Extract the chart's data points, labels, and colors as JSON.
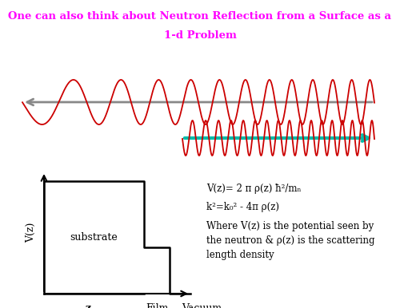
{
  "title_line1": "One can also think about Neutron Reflection from a Surface as a",
  "title_line2": "1-d Problem",
  "title_color": "#FF00FF",
  "bg_color": "#FFFFFF",
  "wave_color": "#CC0000",
  "arrow_grey_color": "#888888",
  "arrow_teal_color": "#00BBAA",
  "eq1": "V(z)= 2 π ρ(z) ħ²/mₙ",
  "eq2": "k²=k₀² - 4π ρ(z)",
  "eq3": "Where V(z) is the potential seen by",
  "eq4": "the neutron & ρ(z) is the scattering",
  "eq5": "length density",
  "label_substrate": "substrate",
  "label_film": "Film",
  "label_vacuum": "Vacuum",
  "label_z": "z",
  "label_vz": "V(z)"
}
